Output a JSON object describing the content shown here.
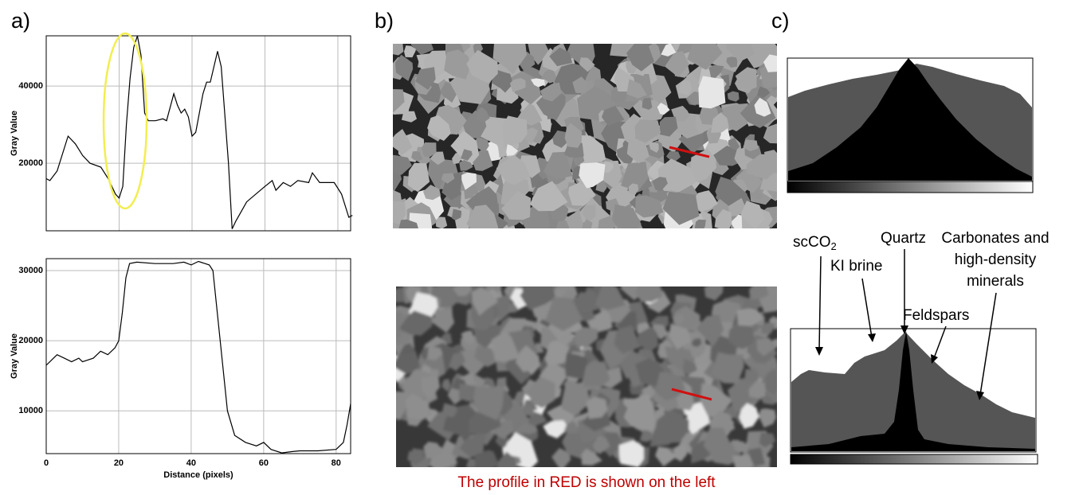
{
  "panel_labels": [
    "a)",
    "b)",
    "c)"
  ],
  "chart_data": [
    {
      "type": "line",
      "ylabel": "Gray Value",
      "color": "#000000",
      "grid": true,
      "xtick_labels": false,
      "x": [
        0,
        1,
        3,
        6,
        8,
        10,
        12,
        15,
        17,
        19,
        20,
        21,
        22,
        23,
        24,
        25,
        26,
        27,
        28,
        30,
        32,
        33,
        35,
        36,
        37,
        38,
        39,
        40,
        41,
        43,
        44,
        45,
        47,
        48,
        50,
        51,
        52,
        55,
        60,
        62,
        63,
        65,
        67,
        69,
        72,
        73,
        75,
        79,
        81,
        83,
        84
      ],
      "values": [
        16000,
        15500,
        18000,
        27000,
        25000,
        22000,
        20000,
        19000,
        16000,
        12000,
        11000,
        14000,
        30000,
        42000,
        50000,
        53000,
        48000,
        33000,
        31000,
        31000,
        31500,
        31000,
        38000,
        35000,
        33000,
        34000,
        32000,
        27000,
        28000,
        38000,
        41000,
        41000,
        49000,
        45000,
        20000,
        3000,
        5000,
        10000,
        14000,
        15500,
        13000,
        15000,
        14000,
        15500,
        15000,
        17500,
        15000,
        15000,
        12000,
        6000,
        6500
      ],
      "xlim": [
        0,
        83.5
      ],
      "ylim": [
        2500,
        53000
      ],
      "xticks": [
        0,
        20,
        40,
        60,
        80
      ],
      "yticks": [
        20000,
        40000
      ]
    },
    {
      "type": "line",
      "ylabel": "Gray Value",
      "xlabel": "Distance (pixels)",
      "color": "#000000",
      "grid": true,
      "xtick_labels": true,
      "x": [
        0,
        2,
        3,
        5,
        7,
        9,
        10,
        13,
        15,
        17,
        19,
        20,
        21,
        22,
        23,
        25,
        30,
        35,
        38,
        40,
        42,
        45,
        46,
        48,
        50,
        52,
        55,
        58,
        60,
        62,
        65,
        68,
        70,
        75,
        80,
        82,
        83,
        84
      ],
      "values": [
        16500,
        17500,
        18000,
        17500,
        17000,
        17500,
        17000,
        17500,
        18500,
        18000,
        19000,
        20000,
        24000,
        29000,
        31000,
        31200,
        31000,
        31000,
        31200,
        30800,
        31300,
        30800,
        30000,
        20000,
        10000,
        6500,
        5500,
        5000,
        5500,
        4500,
        4000,
        4200,
        4300,
        4300,
        4500,
        5500,
        8000,
        11000
      ],
      "xlim": [
        0,
        84
      ],
      "ylim": [
        3900,
        31700
      ],
      "xticks": [
        0,
        20,
        40,
        60,
        80
      ],
      "yticks": [
        10000,
        20000,
        30000
      ]
    }
  ],
  "caption": "The profile in RED is shown on the left",
  "annotations": {
    "scco2": {
      "text": "scCO",
      "subscript": "2"
    },
    "ki_brine": "KI brine",
    "quartz": "Quartz",
    "feldspars": "Feldspars",
    "carbonates": [
      "Carbonates and",
      "high-density",
      "minerals"
    ]
  }
}
